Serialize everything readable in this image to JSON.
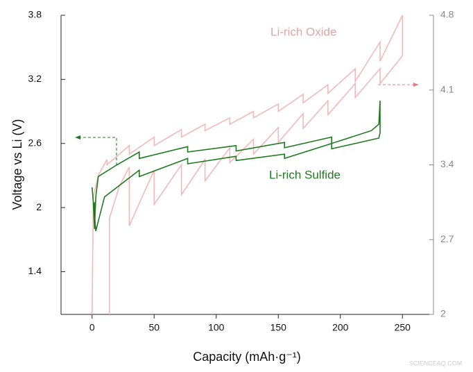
{
  "chart_data": {
    "type": "line",
    "x_label": "Capacity (mAh·g⁻¹)",
    "y_label": "Voltage vs Li (V)",
    "xlim": [
      -25,
      275
    ],
    "xticks": [
      0,
      50,
      100,
      150,
      200,
      250
    ],
    "ylim": [
      1.0,
      3.8
    ],
    "yticks": [
      1.4,
      2.0,
      2.6,
      3.2,
      3.8
    ],
    "y2lim": [
      2.0,
      4.8
    ],
    "y2ticks": [
      2.0,
      2.7,
      3.4,
      4.1,
      4.8
    ],
    "watermark": "SCIENCEAQ.COM",
    "series": [
      {
        "name": "Li-rich Oxide",
        "color": "#f4b8b8",
        "axis": "y2",
        "x": [
          0,
          1,
          5,
          12,
          12,
          30,
          30,
          50,
          50,
          72,
          72,
          91,
          91,
          111,
          111,
          130,
          130,
          150,
          150,
          170,
          170,
          190,
          190,
          212,
          212,
          232,
          232,
          250,
          250,
          232,
          232,
          212,
          212,
          190,
          190,
          170,
          170,
          150,
          150,
          130,
          130,
          111,
          111,
          91,
          91,
          72,
          72,
          50,
          50,
          30,
          30,
          22,
          14,
          14
        ],
        "values": [
          2.0,
          3.1,
          3.3,
          3.45,
          3.4,
          3.58,
          3.5,
          3.66,
          3.58,
          3.73,
          3.66,
          3.78,
          3.72,
          3.84,
          3.78,
          3.9,
          3.84,
          3.97,
          3.9,
          4.06,
          3.98,
          4.15,
          4.07,
          4.3,
          4.18,
          4.55,
          4.37,
          4.8,
          4.42,
          4.16,
          4.3,
          4.03,
          4.16,
          3.87,
          4.0,
          3.74,
          3.88,
          3.61,
          3.75,
          3.5,
          3.64,
          3.42,
          3.56,
          3.25,
          3.45,
          3.12,
          3.4,
          3.03,
          3.35,
          2.83,
          3.38,
          3.2,
          2.9,
          2.0
        ]
      },
      {
        "name": "Li-rich Sulfide",
        "color": "#1f7a1f",
        "axis": "y",
        "x": [
          0,
          1,
          2,
          3,
          5,
          20,
          38,
          38,
          77,
          77,
          116,
          116,
          155,
          155,
          193,
          193,
          225,
          231,
          232,
          232,
          231,
          193,
          193,
          155,
          155,
          116,
          116,
          77,
          77,
          38,
          38,
          10,
          3,
          2,
          2
        ],
        "values": [
          2.19,
          2.05,
          1.8,
          2.1,
          2.29,
          2.4,
          2.52,
          2.46,
          2.57,
          2.52,
          2.58,
          2.53,
          2.61,
          2.56,
          2.66,
          2.6,
          2.72,
          2.78,
          3.0,
          2.7,
          2.65,
          2.55,
          2.6,
          2.46,
          2.5,
          2.44,
          2.48,
          2.41,
          2.46,
          2.29,
          2.35,
          2.1,
          1.78,
          1.93,
          2.05
        ]
      }
    ]
  }
}
